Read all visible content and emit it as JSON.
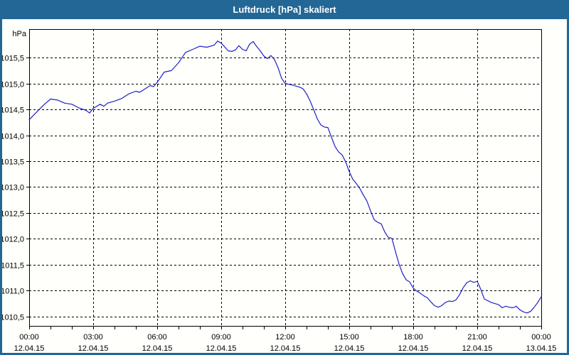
{
  "window": {
    "title": "Luftdruck [hPa] skaliert",
    "colors": {
      "titlebar_bg": "#226795",
      "border": "#226795",
      "content_bg": "#fffffb",
      "curve": "#2020c8",
      "grid": "#000000",
      "axis": "#000000",
      "text": "#000000",
      "title_text": "#ffffff"
    }
  },
  "chart_data": {
    "type": "line",
    "title": "Luftdruck [hPa] skaliert",
    "ylabel": "hPa",
    "series_name": "Luftdruck",
    "x_unit": "hours",
    "xlim": [
      0,
      24
    ],
    "ylim": [
      1010.32,
      1016.05
    ],
    "grid": "dashed",
    "legend": "none",
    "minor_x_tick_every_hours": 1,
    "yticks": [
      {
        "v": 1015.5,
        "label": "1015,5"
      },
      {
        "v": 1015.0,
        "label": "1015,0"
      },
      {
        "v": 1014.5,
        "label": "1014,5"
      },
      {
        "v": 1014.0,
        "label": "1014,0"
      },
      {
        "v": 1013.5,
        "label": "1013,5"
      },
      {
        "v": 1013.0,
        "label": "1013,0"
      },
      {
        "v": 1012.5,
        "label": "1012,5"
      },
      {
        "v": 1012.0,
        "label": "1012,0"
      },
      {
        "v": 1011.5,
        "label": "1011,5"
      },
      {
        "v": 1011.0,
        "label": "1011,0"
      },
      {
        "v": 1010.5,
        "label": "1010,5"
      }
    ],
    "xticks": [
      {
        "h": 0,
        "time": "00:00",
        "date": "12.04.15"
      },
      {
        "h": 3,
        "time": "03:00",
        "date": "12.04.15"
      },
      {
        "h": 6,
        "time": "06:00",
        "date": "12.04.15"
      },
      {
        "h": 9,
        "time": "09:00",
        "date": "12.04.15"
      },
      {
        "h": 12,
        "time": "12:00",
        "date": "12.04.15"
      },
      {
        "h": 15,
        "time": "15:00",
        "date": "12.04.15"
      },
      {
        "h": 18,
        "time": "18:00",
        "date": "12.04.15"
      },
      {
        "h": 21,
        "time": "21:00",
        "date": "12.04.15"
      },
      {
        "h": 24,
        "time": "00:00",
        "date": "13.04.15"
      }
    ],
    "points": [
      [
        0,
        1014.3
      ],
      [
        0.33,
        1014.44
      ],
      [
        0.67,
        1014.58
      ],
      [
        1,
        1014.7
      ],
      [
        1.33,
        1014.68
      ],
      [
        1.67,
        1014.62
      ],
      [
        2,
        1014.6
      ],
      [
        2.33,
        1014.53
      ],
      [
        2.67,
        1014.48
      ],
      [
        2.83,
        1014.43
      ],
      [
        3,
        1014.52
      ],
      [
        3.33,
        1014.6
      ],
      [
        3.5,
        1014.56
      ],
      [
        3.67,
        1014.62
      ],
      [
        4,
        1014.66
      ],
      [
        4.33,
        1014.71
      ],
      [
        4.67,
        1014.8
      ],
      [
        5,
        1014.85
      ],
      [
        5.17,
        1014.83
      ],
      [
        5.33,
        1014.87
      ],
      [
        5.67,
        1014.96
      ],
      [
        5.83,
        1014.94
      ],
      [
        6,
        1015.02
      ],
      [
        6.33,
        1015.22
      ],
      [
        6.67,
        1015.25
      ],
      [
        7,
        1015.4
      ],
      [
        7.33,
        1015.6
      ],
      [
        7.67,
        1015.66
      ],
      [
        8,
        1015.72
      ],
      [
        8.33,
        1015.7
      ],
      [
        8.67,
        1015.74
      ],
      [
        8.83,
        1015.82
      ],
      [
        9,
        1015.78
      ],
      [
        9.33,
        1015.63
      ],
      [
        9.5,
        1015.62
      ],
      [
        9.67,
        1015.65
      ],
      [
        9.83,
        1015.73
      ],
      [
        10,
        1015.66
      ],
      [
        10.17,
        1015.63
      ],
      [
        10.33,
        1015.76
      ],
      [
        10.5,
        1015.81
      ],
      [
        10.67,
        1015.71
      ],
      [
        10.83,
        1015.63
      ],
      [
        11,
        1015.53
      ],
      [
        11.17,
        1015.48
      ],
      [
        11.33,
        1015.54
      ],
      [
        11.5,
        1015.46
      ],
      [
        11.67,
        1015.3
      ],
      [
        11.83,
        1015.1
      ],
      [
        12,
        1015.0
      ],
      [
        12.33,
        1014.97
      ],
      [
        12.67,
        1014.93
      ],
      [
        12.83,
        1014.9
      ],
      [
        13,
        1014.8
      ],
      [
        13.17,
        1014.66
      ],
      [
        13.33,
        1014.5
      ],
      [
        13.5,
        1014.32
      ],
      [
        13.67,
        1014.2
      ],
      [
        13.83,
        1014.16
      ],
      [
        14,
        1014.15
      ],
      [
        14.17,
        1013.96
      ],
      [
        14.33,
        1013.79
      ],
      [
        14.5,
        1013.68
      ],
      [
        14.67,
        1013.62
      ],
      [
        14.83,
        1013.49
      ],
      [
        15,
        1013.3
      ],
      [
        15.17,
        1013.15
      ],
      [
        15.33,
        1013.07
      ],
      [
        15.5,
        1012.97
      ],
      [
        15.67,
        1012.84
      ],
      [
        15.83,
        1012.73
      ],
      [
        16,
        1012.54
      ],
      [
        16.17,
        1012.37
      ],
      [
        16.33,
        1012.32
      ],
      [
        16.5,
        1012.29
      ],
      [
        16.67,
        1012.13
      ],
      [
        16.83,
        1012.03
      ],
      [
        17,
        1012.01
      ],
      [
        17.17,
        1011.75
      ],
      [
        17.33,
        1011.52
      ],
      [
        17.5,
        1011.33
      ],
      [
        17.67,
        1011.21
      ],
      [
        17.83,
        1011.17
      ],
      [
        18,
        1011.05
      ],
      [
        18.17,
        1010.99
      ],
      [
        18.33,
        1010.95
      ],
      [
        18.5,
        1010.9
      ],
      [
        18.67,
        1010.86
      ],
      [
        18.83,
        1010.78
      ],
      [
        19,
        1010.71
      ],
      [
        19.17,
        1010.68
      ],
      [
        19.33,
        1010.71
      ],
      [
        19.5,
        1010.77
      ],
      [
        19.67,
        1010.8
      ],
      [
        19.83,
        1010.79
      ],
      [
        20,
        1010.82
      ],
      [
        20.17,
        1010.92
      ],
      [
        20.33,
        1011.05
      ],
      [
        20.5,
        1011.15
      ],
      [
        20.67,
        1011.19
      ],
      [
        20.83,
        1011.16
      ],
      [
        21,
        1011.18
      ],
      [
        21.17,
        1011.02
      ],
      [
        21.33,
        1010.84
      ],
      [
        21.67,
        1010.77
      ],
      [
        22,
        1010.73
      ],
      [
        22.17,
        1010.67
      ],
      [
        22.33,
        1010.7
      ],
      [
        22.5,
        1010.68
      ],
      [
        22.67,
        1010.67
      ],
      [
        22.83,
        1010.7
      ],
      [
        23,
        1010.63
      ],
      [
        23.17,
        1010.59
      ],
      [
        23.33,
        1010.57
      ],
      [
        23.5,
        1010.6
      ],
      [
        23.67,
        1010.68
      ],
      [
        23.83,
        1010.77
      ],
      [
        24,
        1010.88
      ]
    ]
  }
}
